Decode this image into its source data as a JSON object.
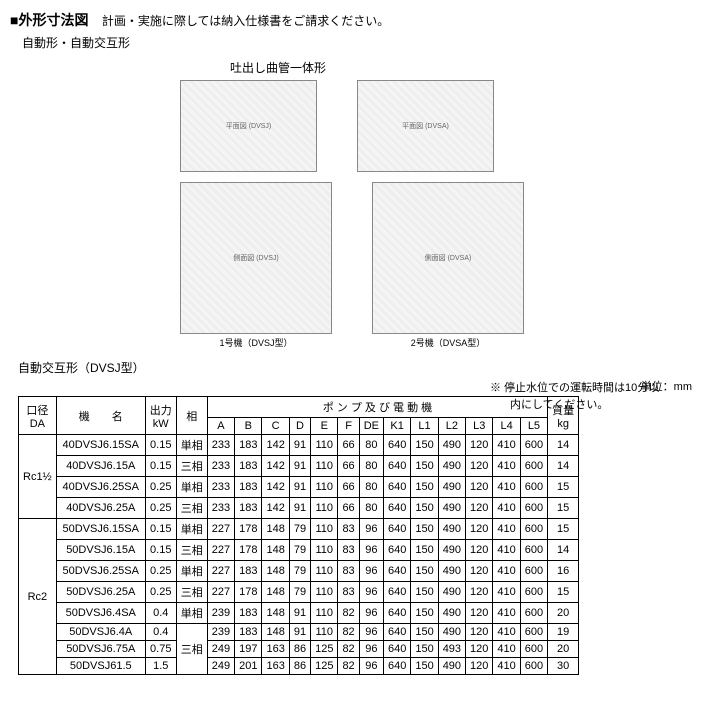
{
  "header": {
    "square": "■",
    "title": "外形寸法図",
    "note": "計画・実施に際しては納入仕様書をご請求ください。",
    "subtitle": "自動形・自動交互形",
    "diagram_caption": "吐出し曲管一体形",
    "diag_top_left_alt": "平面図 (DVSJ)",
    "diag_top_right_alt": "平面図 (DVSA)",
    "diag_bot_left_alt": "側面図 (DVSJ)",
    "diag_bot_right_alt": "側面図 (DVSA)",
    "diag_bot_left_label": "1号機（DVSJ型）",
    "diag_bot_right_label": "2号機（DVSA型）",
    "stop_note_1": "※ 停止水位での運転時間は10分以",
    "stop_note_2": "内にしてください。"
  },
  "table": {
    "section_title": "自動交互形（DVSJ型）",
    "unit": "単位：mm",
    "head": {
      "da": "口径\nDA",
      "model": "機　　名",
      "kw_label": "出力",
      "kw_unit": "kW",
      "phase": "相",
      "group": "ポ ン プ 及 び 電 動 機",
      "cols": [
        "A",
        "B",
        "C",
        "D",
        "E",
        "F",
        "DE",
        "K1",
        "L1",
        "L2",
        "L3",
        "L4",
        "L5"
      ],
      "weight_label": "質量",
      "weight_unit": "kg"
    },
    "groups": [
      {
        "da": "Rc1½",
        "rows": [
          {
            "model": "40DVSJ6.15SA",
            "kw": "0.15",
            "phase": "単相",
            "v": [
              "233",
              "183",
              "142",
              "91",
              "110",
              "66",
              "80",
              "640",
              "150",
              "490",
              "120",
              "410",
              "600"
            ],
            "kg": "14"
          },
          {
            "model": "40DVSJ6.15A",
            "kw": "0.15",
            "phase": "三相",
            "v": [
              "233",
              "183",
              "142",
              "91",
              "110",
              "66",
              "80",
              "640",
              "150",
              "490",
              "120",
              "410",
              "600"
            ],
            "kg": "14"
          },
          {
            "model": "40DVSJ6.25SA",
            "kw": "0.25",
            "phase": "単相",
            "v": [
              "233",
              "183",
              "142",
              "91",
              "110",
              "66",
              "80",
              "640",
              "150",
              "490",
              "120",
              "410",
              "600"
            ],
            "kg": "15"
          },
          {
            "model": "40DVSJ6.25A",
            "kw": "0.25",
            "phase": "三相",
            "v": [
              "233",
              "183",
              "142",
              "91",
              "110",
              "66",
              "80",
              "640",
              "150",
              "490",
              "120",
              "410",
              "600"
            ],
            "kg": "15"
          }
        ]
      },
      {
        "da": "Rc2",
        "rows": [
          {
            "model": "50DVSJ6.15SA",
            "kw": "0.15",
            "phase": "単相",
            "v": [
              "227",
              "178",
              "148",
              "79",
              "110",
              "83",
              "96",
              "640",
              "150",
              "490",
              "120",
              "410",
              "600"
            ],
            "kg": "15"
          },
          {
            "model": "50DVSJ6.15A",
            "kw": "0.15",
            "phase": "三相",
            "v": [
              "227",
              "178",
              "148",
              "79",
              "110",
              "83",
              "96",
              "640",
              "150",
              "490",
              "120",
              "410",
              "600"
            ],
            "kg": "14"
          },
          {
            "model": "50DVSJ6.25SA",
            "kw": "0.25",
            "phase": "単相",
            "v": [
              "227",
              "183",
              "148",
              "79",
              "110",
              "83",
              "96",
              "640",
              "150",
              "490",
              "120",
              "410",
              "600"
            ],
            "kg": "16"
          },
          {
            "model": "50DVSJ6.25A",
            "kw": "0.25",
            "phase": "三相",
            "v": [
              "227",
              "178",
              "148",
              "79",
              "110",
              "83",
              "96",
              "640",
              "150",
              "490",
              "120",
              "410",
              "600"
            ],
            "kg": "15"
          },
          {
            "model": "50DVSJ6.4SA",
            "kw": "0.4",
            "phase": "単相",
            "v": [
              "239",
              "183",
              "148",
              "91",
              "110",
              "82",
              "96",
              "640",
              "150",
              "490",
              "120",
              "410",
              "600"
            ],
            "kg": "20"
          },
          {
            "model": "50DVSJ6.4A",
            "kw": "0.4",
            "phase": "",
            "v": [
              "239",
              "183",
              "148",
              "91",
              "110",
              "82",
              "96",
              "640",
              "150",
              "490",
              "120",
              "410",
              "600"
            ],
            "kg": "19"
          },
          {
            "model": "50DVSJ6.75A",
            "kw": "0.75",
            "phase": "三相",
            "v": [
              "249",
              "197",
              "163",
              "86",
              "125",
              "82",
              "96",
              "640",
              "150",
              "493",
              "120",
              "410",
              "600"
            ],
            "kg": "20"
          },
          {
            "model": "50DVSJ61.5",
            "kw": "1.5",
            "phase": "",
            "v": [
              "249",
              "201",
              "163",
              "86",
              "125",
              "82",
              "96",
              "640",
              "150",
              "490",
              "120",
              "410",
              "600"
            ],
            "kg": "30"
          }
        ],
        "phase_merge": {
          "start": 5,
          "span": 3,
          "label": "三相"
        }
      }
    ]
  }
}
